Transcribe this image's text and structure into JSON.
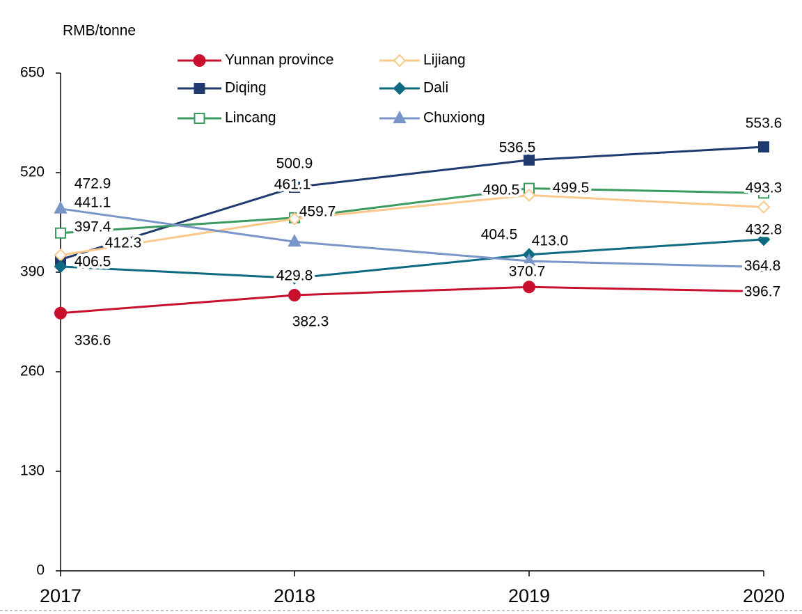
{
  "chart_data": {
    "type": "line",
    "y_axis_label": "RMB/tonne",
    "categories": [
      "2017",
      "2018",
      "2019",
      "2020"
    ],
    "ylim": [
      0,
      650
    ],
    "yticks": [
      0,
      130,
      260,
      390,
      520,
      650
    ],
    "legend": "top",
    "series": [
      {
        "name": "Yunnan province",
        "color": "#c8102e",
        "marker": "circle",
        "values": [
          336.6,
          360,
          370.7,
          364.8
        ],
        "value_labels": [
          "336.6",
          null,
          "370.7",
          "364.8"
        ]
      },
      {
        "name": "Diqing",
        "color": "#1f3a6e",
        "marker": "square",
        "values": [
          406.5,
          500.9,
          536.5,
          553.6
        ],
        "value_labels": [
          "406.5",
          "500.9",
          "536.5",
          "553.6"
        ]
      },
      {
        "name": "Lincang",
        "color": "#3a9a60",
        "marker": "square-open",
        "values": [
          441.1,
          461.1,
          499.5,
          493.3
        ],
        "value_labels": [
          "441.1",
          "461.1",
          "499.5",
          "493.3"
        ]
      },
      {
        "name": "Lijiang",
        "color": "#f9c88a",
        "marker": "diamond-open",
        "values": [
          412.3,
          459.7,
          490.5,
          475
        ],
        "value_labels": [
          "412.3",
          "459.7",
          "490.5",
          null
        ]
      },
      {
        "name": "Dali",
        "color": "#0e6a80",
        "marker": "diamond",
        "values": [
          397.4,
          382.3,
          413.0,
          432.8
        ],
        "value_labels": [
          "397.4",
          "382.3",
          "413.0",
          "432.8"
        ]
      },
      {
        "name": "Chuxiong",
        "color": "#7a96c8",
        "marker": "triangle",
        "values": [
          472.9,
          429.8,
          404.5,
          396.7
        ],
        "value_labels": [
          "472.9",
          "429.8",
          "404.5",
          "396.7"
        ]
      }
    ]
  }
}
